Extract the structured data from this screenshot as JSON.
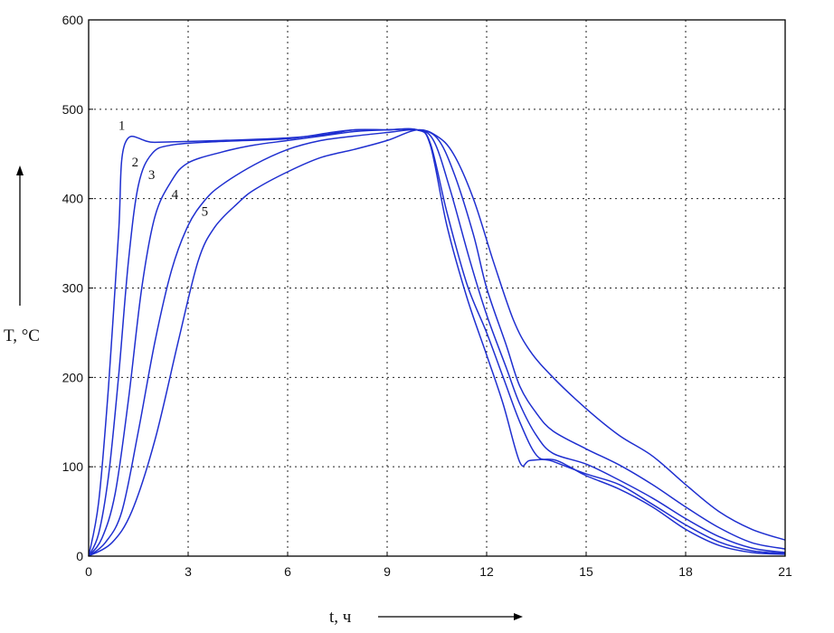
{
  "chart_data": {
    "type": "line",
    "xlabel": "t, ч",
    "ylabel": "T, °C",
    "xlim": [
      0,
      21
    ],
    "ylim": [
      0,
      600
    ],
    "xticks": [
      0,
      3,
      6,
      9,
      12,
      15,
      18,
      21
    ],
    "yticks": [
      0,
      100,
      200,
      300,
      400,
      500,
      600
    ],
    "grid": true,
    "line_color": "#1f2fd0",
    "series": [
      {
        "name": "1",
        "label_at": [
          1.0,
          477
        ],
        "points": [
          [
            0,
            0
          ],
          [
            0.3,
            60
          ],
          [
            0.6,
            190
          ],
          [
            0.9,
            360
          ],
          [
            1.1,
            462
          ],
          [
            2,
            463
          ],
          [
            4,
            465
          ],
          [
            6,
            468
          ],
          [
            7.2,
            472
          ],
          [
            8,
            477
          ],
          [
            9,
            477
          ],
          [
            9.9,
            477
          ],
          [
            10.3,
            460
          ],
          [
            10.8,
            370
          ],
          [
            11.4,
            290
          ],
          [
            12,
            225
          ],
          [
            12.5,
            170
          ],
          [
            13,
            105
          ],
          [
            13.3,
            107
          ],
          [
            14,
            108
          ],
          [
            14.5,
            100
          ],
          [
            15,
            90
          ],
          [
            16,
            75
          ],
          [
            17,
            55
          ],
          [
            18,
            30
          ],
          [
            19,
            12
          ],
          [
            20,
            4
          ],
          [
            21,
            2
          ]
        ]
      },
      {
        "name": "2",
        "label_at": [
          1.4,
          436
        ],
        "points": [
          [
            0,
            0
          ],
          [
            0.3,
            25
          ],
          [
            0.6,
            90
          ],
          [
            0.9,
            200
          ],
          [
            1.2,
            330
          ],
          [
            1.5,
            415
          ],
          [
            1.9,
            450
          ],
          [
            2.5,
            460
          ],
          [
            4,
            464
          ],
          [
            6,
            467
          ],
          [
            7.3,
            474
          ],
          [
            8,
            477
          ],
          [
            9,
            477
          ],
          [
            9.9,
            477
          ],
          [
            10.3,
            462
          ],
          [
            10.8,
            385
          ],
          [
            11.4,
            305
          ],
          [
            12,
            250
          ],
          [
            12.5,
            200
          ],
          [
            13,
            150
          ],
          [
            13.5,
            113
          ],
          [
            14,
            106
          ],
          [
            15,
            92
          ],
          [
            16,
            80
          ],
          [
            17,
            58
          ],
          [
            18,
            35
          ],
          [
            19,
            16
          ],
          [
            20,
            6
          ],
          [
            21,
            3
          ]
        ]
      },
      {
        "name": "3",
        "label_at": [
          1.9,
          422
        ],
        "points": [
          [
            0,
            0
          ],
          [
            0.4,
            20
          ],
          [
            0.8,
            70
          ],
          [
            1.2,
            175
          ],
          [
            1.6,
            300
          ],
          [
            2,
            380
          ],
          [
            2.5,
            420
          ],
          [
            3,
            440
          ],
          [
            4,
            452
          ],
          [
            5,
            460
          ],
          [
            6,
            465
          ],
          [
            7,
            470
          ],
          [
            8,
            475
          ],
          [
            9,
            477
          ],
          [
            9.9,
            477
          ],
          [
            10.4,
            465
          ],
          [
            10.9,
            410
          ],
          [
            11.5,
            330
          ],
          [
            12,
            270
          ],
          [
            12.6,
            210
          ],
          [
            13,
            170
          ],
          [
            13.5,
            135
          ],
          [
            14,
            115
          ],
          [
            15,
            103
          ],
          [
            16,
            85
          ],
          [
            17,
            65
          ],
          [
            18,
            42
          ],
          [
            19,
            22
          ],
          [
            20,
            9
          ],
          [
            21,
            4
          ]
        ]
      },
      {
        "name": "4",
        "label_at": [
          2.6,
          400
        ],
        "points": [
          [
            0,
            0
          ],
          [
            0.5,
            15
          ],
          [
            1,
            50
          ],
          [
            1.5,
            140
          ],
          [
            2,
            240
          ],
          [
            2.5,
            320
          ],
          [
            3,
            370
          ],
          [
            3.5,
            398
          ],
          [
            4,
            415
          ],
          [
            5,
            438
          ],
          [
            6,
            455
          ],
          [
            7,
            465
          ],
          [
            8,
            470
          ],
          [
            9,
            474
          ],
          [
            9.9,
            477
          ],
          [
            10.5,
            468
          ],
          [
            11,
            430
          ],
          [
            11.6,
            360
          ],
          [
            12,
            300
          ],
          [
            12.6,
            235
          ],
          [
            13,
            190
          ],
          [
            13.5,
            160
          ],
          [
            14,
            140
          ],
          [
            15,
            120
          ],
          [
            16,
            102
          ],
          [
            17,
            80
          ],
          [
            18,
            55
          ],
          [
            19,
            32
          ],
          [
            20,
            15
          ],
          [
            21,
            8
          ]
        ]
      },
      {
        "name": "5",
        "label_at": [
          3.5,
          381
        ],
        "points": [
          [
            0,
            0
          ],
          [
            0.7,
            15
          ],
          [
            1.3,
            50
          ],
          [
            2,
            130
          ],
          [
            2.7,
            240
          ],
          [
            3.3,
            330
          ],
          [
            3.8,
            368
          ],
          [
            4.5,
            395
          ],
          [
            5,
            410
          ],
          [
            6,
            430
          ],
          [
            7,
            446
          ],
          [
            8,
            455
          ],
          [
            9,
            465
          ],
          [
            9.9,
            477
          ],
          [
            10.5,
            470
          ],
          [
            11,
            450
          ],
          [
            11.6,
            400
          ],
          [
            12.2,
            330
          ],
          [
            12.8,
            265
          ],
          [
            13.3,
            230
          ],
          [
            14,
            200
          ],
          [
            15,
            165
          ],
          [
            16,
            135
          ],
          [
            17,
            112
          ],
          [
            18,
            80
          ],
          [
            19,
            50
          ],
          [
            20,
            30
          ],
          [
            21,
            18
          ]
        ]
      }
    ]
  }
}
